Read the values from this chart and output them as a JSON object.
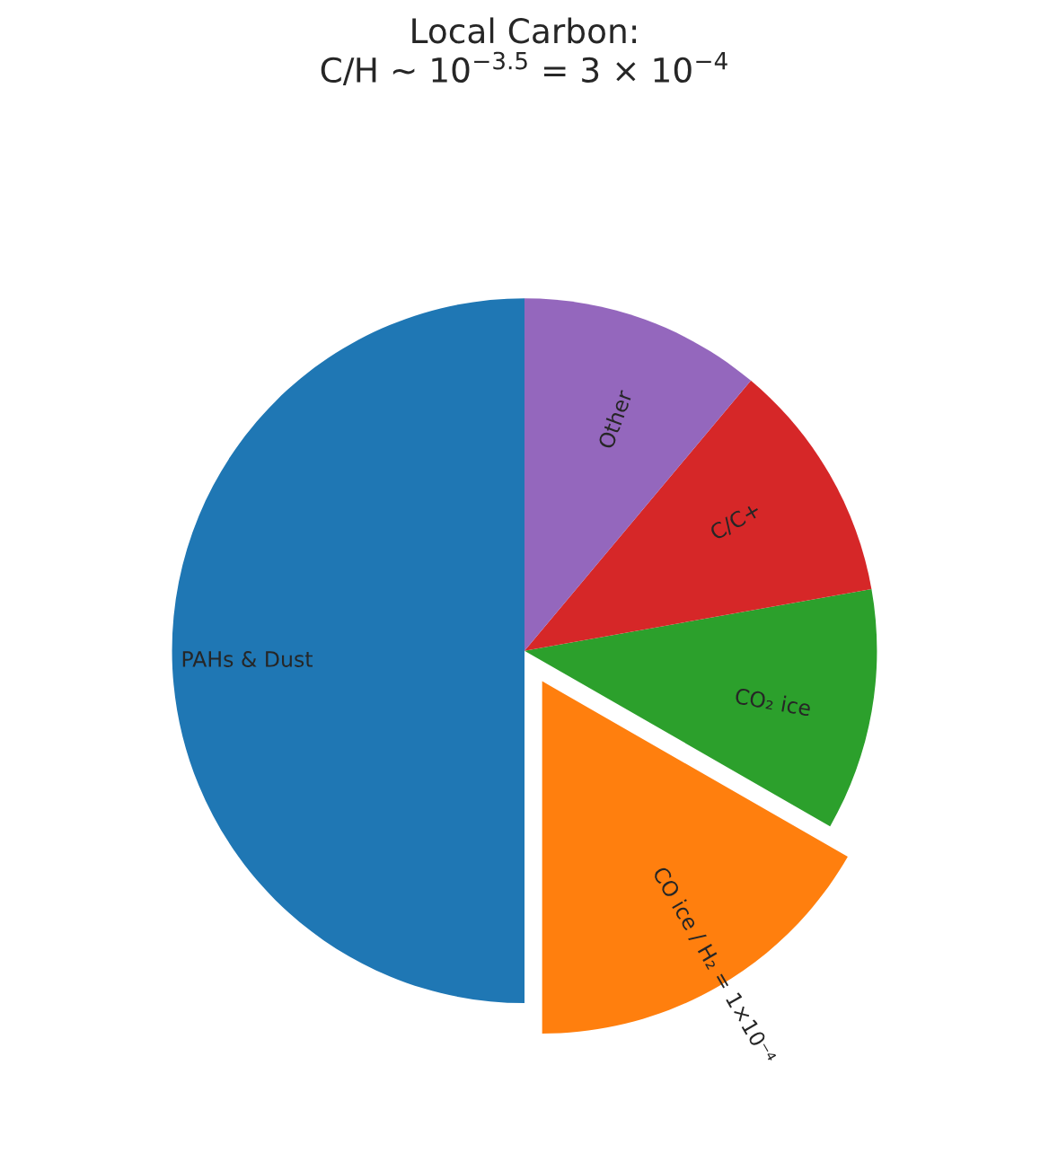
{
  "chart_data": {
    "type": "pie",
    "title": "Local Carbon:\nC/H ~ 10$^{−3.5}$ = 3 × 10$^{−4}$",
    "categories": [
      "PAHs & Dust",
      "CO ice / H₂ = 1×10⁻⁴",
      "CO₂ ice",
      "C/C+",
      "Other"
    ],
    "values": [
      50,
      16.7,
      11.1,
      11.1,
      11.1
    ],
    "colors": [
      "#1f77b4",
      "#ff7f0e",
      "#2ca02c",
      "#d62728",
      "#9467bd"
    ]
  }
}
